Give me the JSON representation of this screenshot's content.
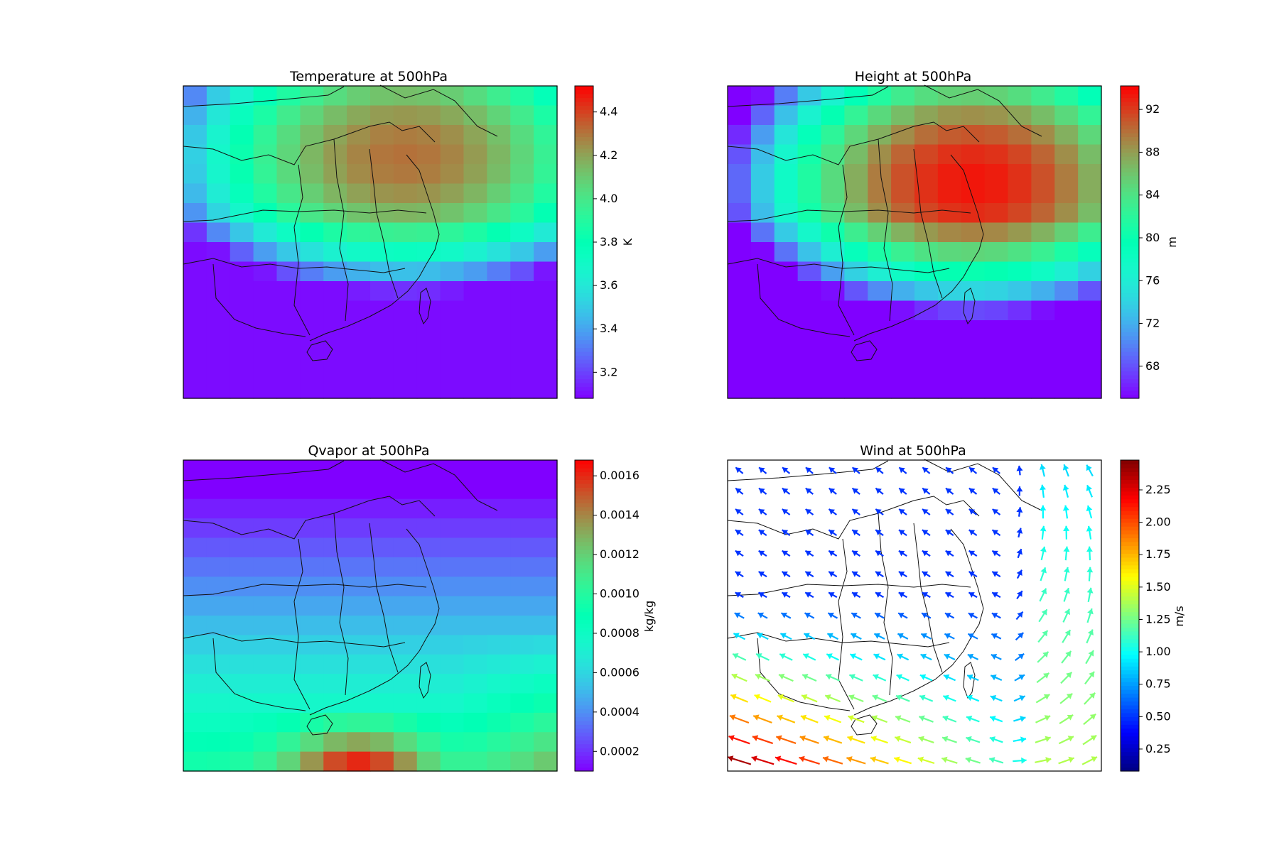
{
  "chart_data": [
    {
      "type": "heatmap",
      "title": "Temperature at 500hPa",
      "colorbar": {
        "label": "K",
        "range": [
          3.08,
          4.52
        ],
        "ticks": [
          "3.2",
          "3.4",
          "3.6",
          "3.8",
          "4.0",
          "4.2",
          "4.4"
        ]
      },
      "grid_rows": 16,
      "grid_cols": 16,
      "peak": {
        "row": 4,
        "col": 9,
        "value": 4.5
      },
      "range": [
        3.1,
        4.5
      ]
    },
    {
      "type": "heatmap",
      "title": "Height at 500hPa",
      "colorbar": {
        "label": "m",
        "range": [
          65,
          94.2
        ],
        "ticks": [
          "68",
          "72",
          "76",
          "80",
          "84",
          "88",
          "92"
        ]
      },
      "grid_rows": 16,
      "grid_cols": 16,
      "peak": {
        "row": 4,
        "col": 10,
        "value": 93.5
      },
      "range": [
        65,
        93.5
      ]
    },
    {
      "type": "heatmap",
      "title": "Qvapor at 500hPa",
      "colorbar": {
        "label": "kg/kg",
        "range": [
          0.0001,
          0.00168
        ],
        "ticks": [
          "0.0002",
          "0.0004",
          "0.0006",
          "0.0008",
          "0.0010",
          "0.0012",
          "0.0014",
          "0.0016"
        ]
      },
      "grid_rows": 16,
      "grid_cols": 16,
      "peak": {
        "row": 15,
        "col": 7,
        "value": 0.00165
      },
      "range": [
        0.0001,
        0.00165
      ]
    },
    {
      "type": "quiver",
      "title": "Wind at 500hPa",
      "colorbar": {
        "label": "m/s",
        "range": [
          0.08,
          2.48
        ],
        "ticks": [
          "0.25",
          "0.50",
          "0.75",
          "1.00",
          "1.25",
          "1.50",
          "1.75",
          "2.00",
          "2.25"
        ]
      },
      "grid_rows": 15,
      "grid_cols": 16,
      "max_speed_region": "lower-left",
      "speed_range": [
        0.5,
        2.4
      ]
    }
  ]
}
